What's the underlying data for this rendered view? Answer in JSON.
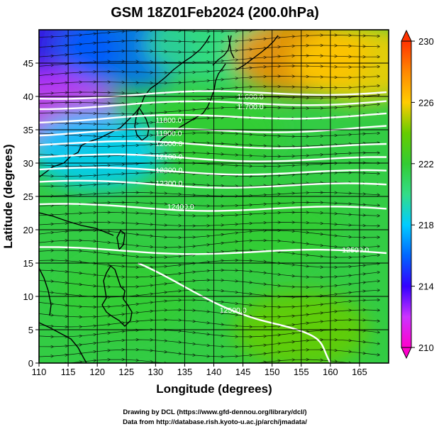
{
  "chart_data": {
    "type": "heatmap",
    "title": "GSM 18Z01Feb2024 (200.0hPa)",
    "xlabel": "Longitude (degrees)",
    "ylabel": "Latitude  (degrees)",
    "xlim": [
      110,
      170
    ],
    "ylim": [
      0,
      50
    ],
    "xticks": [
      "110",
      "115",
      "120",
      "125",
      "130",
      "135",
      "140",
      "145",
      "150",
      "155",
      "160",
      "165"
    ],
    "yticks": [
      "0",
      "5",
      "10",
      "15",
      "20",
      "25",
      "30",
      "35",
      "40",
      "45"
    ],
    "grid": true,
    "colorbar": {
      "position": "right",
      "min": 210,
      "max": 230,
      "ticks": [
        "210",
        "214",
        "218",
        "222",
        "226",
        "230"
      ],
      "colors": [
        "#ff00cc",
        "#cc33ff",
        "#3300ff",
        "#0066ff",
        "#00ccff",
        "#33dd88",
        "#33cc33",
        "#66cc00",
        "#ffcc00",
        "#ff8800",
        "#ff3300"
      ]
    },
    "temperature_regions": [
      {
        "lon": 112,
        "lat": 47,
        "value": 214
      },
      {
        "lon": 112,
        "lat": 38,
        "value": 211
      },
      {
        "lon": 125,
        "lat": 47,
        "value": 216
      },
      {
        "lon": 140,
        "lat": 48,
        "value": 219
      },
      {
        "lon": 155,
        "lat": 46,
        "value": 227
      },
      {
        "lon": 165,
        "lat": 45,
        "value": 226
      },
      {
        "lon": 120,
        "lat": 32,
        "value": 218
      },
      {
        "lon": 140,
        "lat": 35,
        "value": 222
      },
      {
        "lon": 150,
        "lat": 20,
        "value": 222
      },
      {
        "lon": 125,
        "lat": 10,
        "value": 222
      },
      {
        "lon": 155,
        "lat": 5,
        "value": 223
      }
    ],
    "contours": [
      {
        "label": "11600.0",
        "lon": 144,
        "lat": 40
      },
      {
        "label": "11700.0",
        "lon": 144,
        "lat": 38.5
      },
      {
        "label": "11800.0",
        "lon": 130,
        "lat": 36.5
      },
      {
        "label": "11900.0",
        "lon": 130,
        "lat": 34.5
      },
      {
        "label": "12000.0",
        "lon": 130,
        "lat": 33
      },
      {
        "label": "12100.0",
        "lon": 130,
        "lat": 31
      },
      {
        "label": "12200.0",
        "lon": 130,
        "lat": 29
      },
      {
        "label": "12300.0",
        "lon": 130,
        "lat": 27
      },
      {
        "label": "12400.0",
        "lon": 132,
        "lat": 23.5
      },
      {
        "label": "12500.0",
        "lon": 162,
        "lat": 17
      },
      {
        "label": "12500.0",
        "lon": 141,
        "lat": 8
      }
    ],
    "credits": [
      "Drawing by DCL (https://www.gfd-dennou.org/library/dcl/)",
      "Data from http://database.rish.kyoto-u.ac.jp/arch/jmadata/"
    ]
  }
}
